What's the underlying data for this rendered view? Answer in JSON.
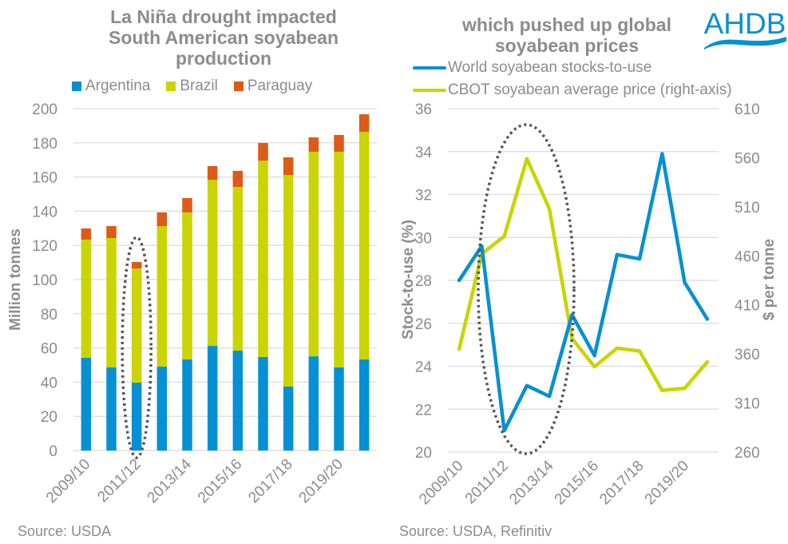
{
  "logo": {
    "text": "AHDB",
    "color": "#0590d4"
  },
  "colors": {
    "argentina": "#0590d4",
    "brazil": "#c9d400",
    "paraguay": "#dd5a17",
    "stocks_line": "#0590d4",
    "price_line": "#c9d400",
    "grid": "#e0e0e0",
    "text": "#8c8c8c",
    "ellipse": "#555555"
  },
  "chart_data": [
    {
      "type": "bar",
      "stacked": true,
      "title": "La Niña drought impacted\nSouth American soyabean\nproduction",
      "xlabel": "",
      "ylabel": "Million tonnes",
      "ylim": [
        0,
        200
      ],
      "yticks": [
        0,
        20,
        40,
        60,
        80,
        100,
        120,
        140,
        160,
        180,
        200
      ],
      "grid": true,
      "legend_position": "top",
      "categories": [
        "2009/10",
        "2010/11",
        "2011/12",
        "2012/13",
        "2013/14",
        "2014/15",
        "2015/16",
        "2016/17",
        "2017/18",
        "2018/19",
        "2019/20",
        "2020/21"
      ],
      "xtick_labels_shown": [
        "2009/10",
        "2011/12",
        "2013/14",
        "2015/16",
        "2017/18",
        "2019/20"
      ],
      "series": [
        {
          "name": "Argentina",
          "color_key": "argentina",
          "values": [
            54.2,
            48.6,
            39.7,
            49.1,
            53.3,
            61.2,
            58.4,
            54.7,
            37.4,
            55.1,
            48.6,
            53.3
          ]
        },
        {
          "name": "Brazil",
          "color_key": "brazil",
          "values": [
            69.2,
            75.7,
            66.8,
            82.2,
            86.0,
            97.2,
            95.8,
            114.9,
            123.8,
            119.7,
            126.2,
            133.1
          ]
        },
        {
          "name": "Paraguay",
          "color_key": "paraguay",
          "values": [
            6.5,
            7.0,
            3.8,
            8.0,
            8.4,
            8.0,
            9.4,
            10.3,
            10.3,
            8.4,
            9.8,
            10.3
          ]
        }
      ],
      "annotation": {
        "type": "dotted-ellipse",
        "highlight_category": "2011/12"
      },
      "source": "Source: USDA"
    },
    {
      "type": "line",
      "title": "which pushed up global\nsoyabean prices",
      "xlabel": "",
      "ylabel": "Stock-to-use (%)",
      "ylabel_right": "$ per tonne",
      "ylim": [
        20,
        36
      ],
      "yticks": [
        20,
        22,
        24,
        26,
        28,
        30,
        32,
        34,
        36
      ],
      "ylim_right": [
        260,
        610
      ],
      "yticks_right": [
        260,
        310,
        360,
        410,
        460,
        510,
        560,
        610
      ],
      "grid": true,
      "legend_position": "top-left",
      "categories": [
        "2009/10",
        "2010/11",
        "2011/12",
        "2012/13",
        "2013/14",
        "2014/15",
        "2015/16",
        "2016/17",
        "2017/18",
        "2018/19",
        "2019/20",
        "2020/21"
      ],
      "xtick_labels_shown": [
        "2009/10",
        "2011/12",
        "2013/14",
        "2015/16",
        "2017/18",
        "2019/20"
      ],
      "series": [
        {
          "name": "World soyabean stocks-to-use",
          "axis": "left",
          "color_key": "stocks_line",
          "values": [
            28.0,
            29.6,
            21.0,
            23.1,
            22.6,
            26.4,
            24.5,
            29.2,
            29.0,
            33.9,
            27.9,
            26.2
          ]
        },
        {
          "name": "CBOT soyabean average price (right-axis)",
          "axis": "right",
          "color_key": "price_line",
          "values": [
            365,
            462,
            480,
            559,
            508,
            376,
            347,
            366,
            363,
            323,
            325,
            352
          ]
        }
      ],
      "annotation": {
        "type": "dotted-ellipse",
        "highlight_categories": [
          "2011/12",
          "2012/13",
          "2013/14"
        ]
      },
      "source": "Source: USDA, Refinitiv"
    }
  ]
}
